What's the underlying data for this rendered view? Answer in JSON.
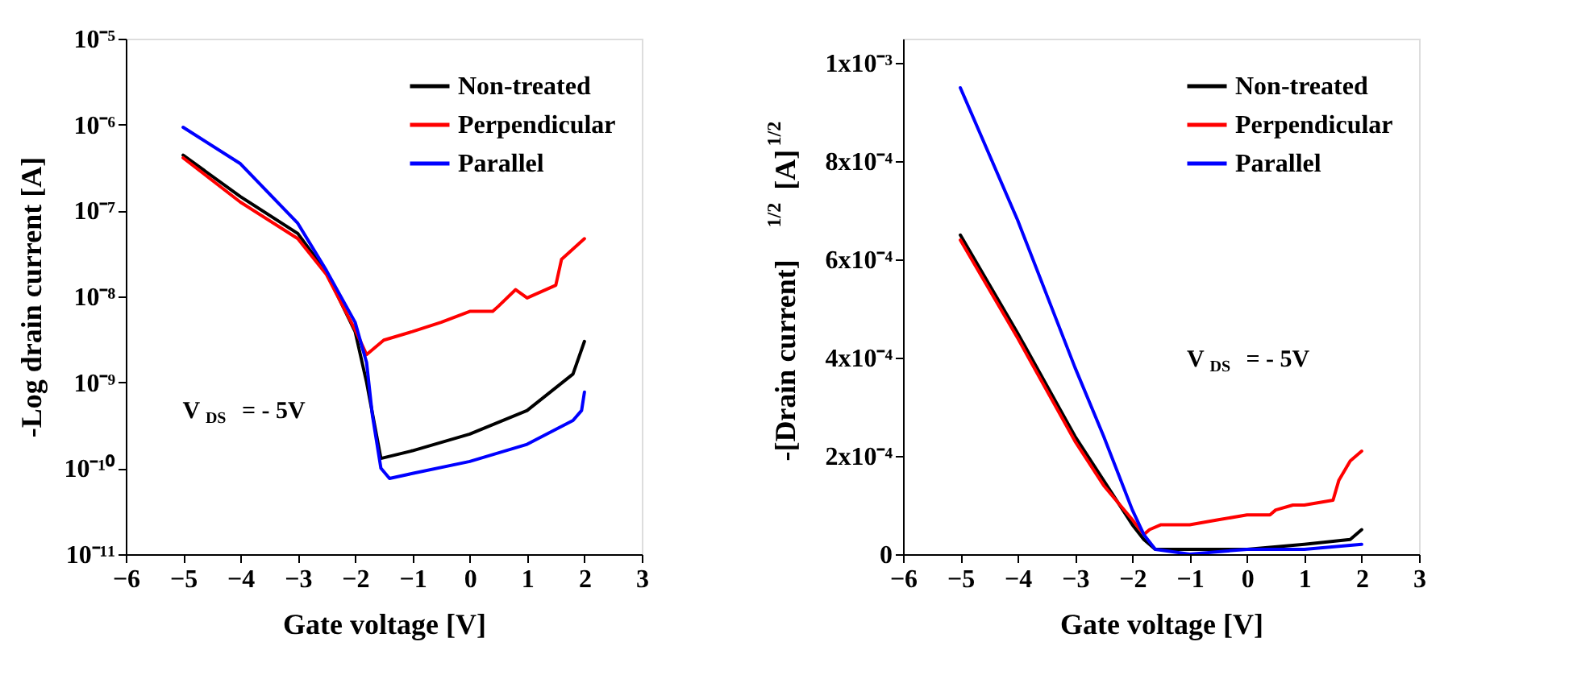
{
  "chart_data": [
    {
      "type": "line",
      "xlabel": "Gate voltage [V]",
      "ylabel": "-Log drain current [A]",
      "log": "y",
      "legend": "top right",
      "grid": false,
      "line_style": "solid",
      "xlim": [
        -6,
        3
      ],
      "xticks": [
        -6,
        -5,
        -4,
        -3,
        -2,
        -1,
        0,
        1,
        2,
        3
      ],
      "ylim": [
        1e-11,
        1e-05
      ],
      "yticks": [
        {
          "value": 1e-11,
          "label": "10⁻¹¹"
        },
        {
          "value": 1e-10,
          "label": "10⁻¹⁰"
        },
        {
          "value": 1e-09,
          "label": "10⁻⁹"
        },
        {
          "value": 1e-08,
          "label": "10⁻⁸"
        },
        {
          "value": 1e-07,
          "label": "10⁻⁷"
        },
        {
          "value": 1e-06,
          "label": "10⁻⁶"
        },
        {
          "value": 1e-05,
          "label": "10⁻⁵"
        }
      ],
      "annotations": [
        "V$_{DS}$ = - 5V"
      ],
      "series": [
        {
          "name": "Non-treated",
          "color": "#000000",
          "x": [
            -5,
            -4,
            -3,
            -2.5,
            -2,
            -1.8,
            -1.55,
            -1,
            0,
            1,
            1.8,
            2
          ],
          "values": [
            4.4e-07,
            1.45e-07,
            5.4e-08,
            1.9e-08,
            3.9e-09,
            1e-09,
            1.3e-10,
            1.6e-10,
            2.5e-10,
            4.7e-10,
            1.25e-09,
            3e-09
          ]
        },
        {
          "name": "Perpendicular",
          "color": "#ff0000",
          "x": [
            -5,
            -4,
            -3,
            -2.5,
            -2,
            -1.8,
            -1.5,
            -1,
            -0.5,
            0,
            0.4,
            0.5,
            0.8,
            1.0,
            1.5,
            1.6,
            2
          ],
          "values": [
            4.1e-07,
            1.25e-07,
            4.7e-08,
            1.8e-08,
            4.1e-09,
            2.1e-09,
            3.1e-09,
            3.9e-09,
            5e-09,
            6.7e-09,
            6.7e-09,
            7.7e-09,
            1.2e-08,
            9.6e-09,
            1.35e-08,
            2.7e-08,
            4.7e-08
          ]
        },
        {
          "name": "Parallel",
          "color": "#0000ff",
          "x": [
            -5,
            -4,
            -3,
            -2.5,
            -2,
            -1.8,
            -1.7,
            -1.55,
            -1.4,
            -1,
            0,
            1,
            1.8,
            1.95,
            2
          ],
          "values": [
            9.3e-07,
            3.5e-07,
            7.1e-08,
            2e-08,
            5e-09,
            1.7e-09,
            4.2e-10,
            1e-10,
            7.6e-11,
            8.7e-11,
            1.2e-10,
            1.9e-10,
            3.6e-10,
            4.7e-10,
            7.7e-10
          ]
        }
      ]
    },
    {
      "type": "line",
      "xlabel": "Gate voltage [V]",
      "ylabel": "-[Drain current]$^{1/2}$ [A]$^{1/2}$",
      "legend": "top right",
      "grid": false,
      "line_style": "solid",
      "xlim": [
        -6,
        3
      ],
      "xticks": [
        -6,
        -5,
        -4,
        -3,
        -2,
        -1,
        0,
        1,
        2,
        3
      ],
      "ylim": [
        0,
        0.00105
      ],
      "yticks": [
        {
          "value": 0,
          "label": "0"
        },
        {
          "value": 0.0002,
          "label": "2x10⁻⁴"
        },
        {
          "value": 0.0004,
          "label": "4x10⁻⁴"
        },
        {
          "value": 0.0006,
          "label": "6x10⁻⁴"
        },
        {
          "value": 0.0008,
          "label": "8x10⁻⁴"
        },
        {
          "value": 0.001,
          "label": "1x10⁻³"
        }
      ],
      "annotations": [
        "V$_{DS}$ = - 5V"
      ],
      "series": [
        {
          "name": "Non-treated",
          "color": "#000000",
          "x": [
            -5,
            -4,
            -3,
            -2,
            -1.8,
            -1.6,
            -1,
            0,
            1,
            1.8,
            2
          ],
          "values": [
            0.00065,
            0.00045,
            0.00024,
            6e-05,
            3e-05,
            1e-05,
            1e-05,
            1e-05,
            2e-05,
            3e-05,
            5e-05
          ]
        },
        {
          "name": "Perpendicular",
          "color": "#ff0000",
          "x": [
            -5,
            -4,
            -3,
            -2.5,
            -2,
            -1.8,
            -1.7,
            -1.5,
            -1,
            -0.5,
            0,
            0.4,
            0.5,
            0.8,
            1,
            1.5,
            1.6,
            1.8,
            2
          ],
          "values": [
            0.00064,
            0.00044,
            0.00023,
            0.00014,
            7e-05,
            4e-05,
            5e-05,
            6e-05,
            6e-05,
            7e-05,
            8e-05,
            8e-05,
            9e-05,
            0.0001,
            0.0001,
            0.00011,
            0.00015,
            0.00019,
            0.00021
          ]
        },
        {
          "name": "Parallel",
          "color": "#0000ff",
          "x": [
            -5,
            -4,
            -3,
            -2.5,
            -2,
            -1.8,
            -1.6,
            -1,
            0,
            1,
            2
          ],
          "values": [
            0.00095,
            0.00068,
            0.00038,
            0.00024,
            9e-05,
            4e-05,
            1e-05,
            0.0,
            1e-05,
            1e-05,
            2e-05
          ]
        }
      ]
    }
  ]
}
